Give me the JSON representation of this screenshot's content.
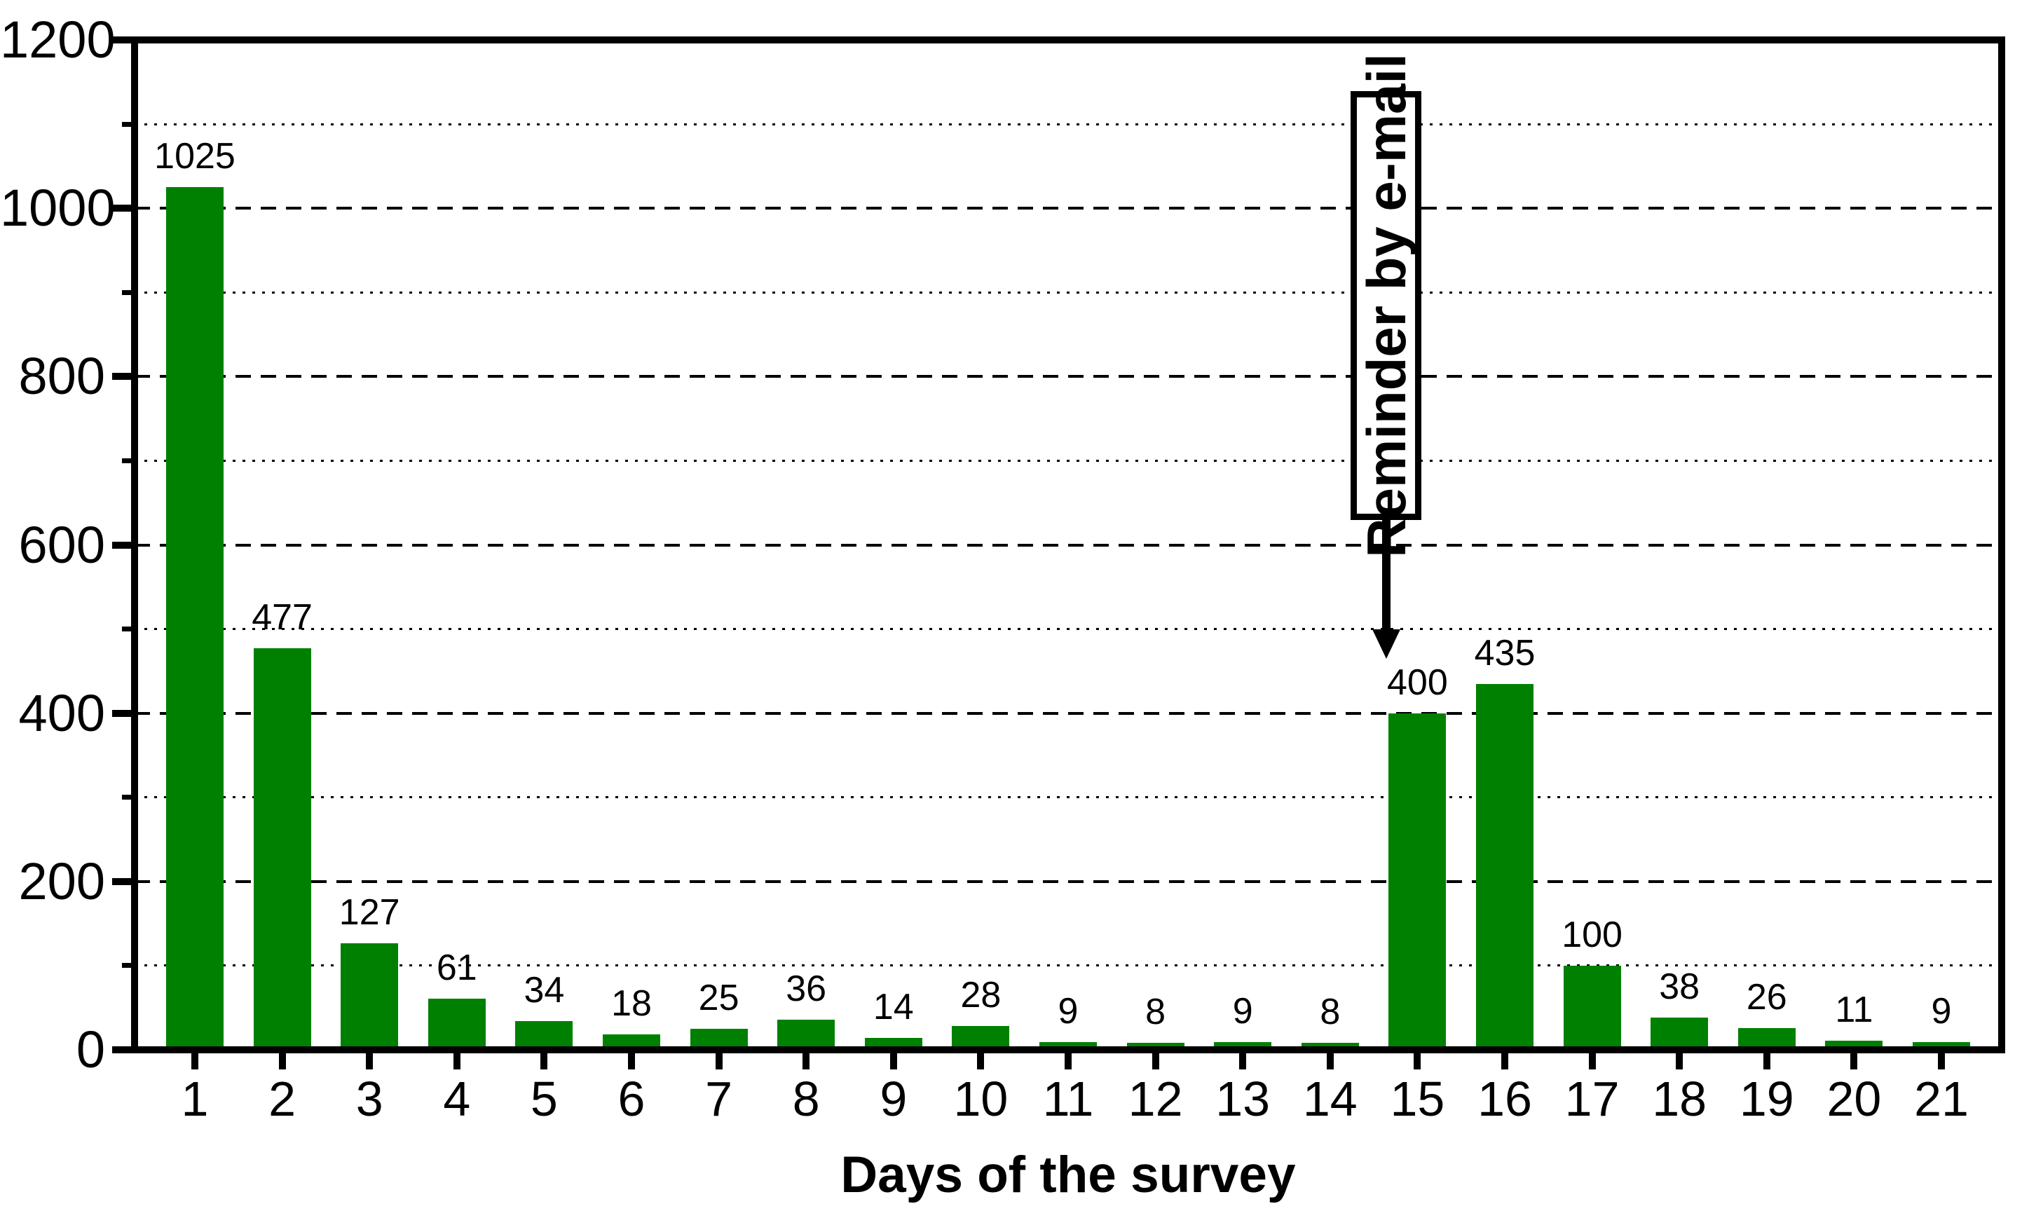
{
  "chart_data": {
    "type": "bar",
    "title": "",
    "xlabel": "Days of the survey",
    "ylabel": "",
    "categories": [
      1,
      2,
      3,
      4,
      5,
      6,
      7,
      8,
      9,
      10,
      11,
      12,
      13,
      14,
      15,
      16,
      17,
      18,
      19,
      20,
      21
    ],
    "values": [
      1025,
      477,
      127,
      61,
      34,
      18,
      25,
      36,
      14,
      28,
      9,
      8,
      9,
      8,
      400,
      435,
      100,
      38,
      26,
      11,
      9
    ],
    "bar_color": "#008000",
    "axis_color": "#000000",
    "background_color": "#ffffff",
    "ylim": [
      0,
      1200
    ],
    "yticks_major": [
      0,
      200,
      400,
      600,
      800,
      1000,
      1200
    ],
    "yticks_minor": [
      100,
      300,
      500,
      700,
      900,
      1100
    ],
    "grid": {
      "orientation": "horizontal",
      "major_style": "dashed",
      "minor_style": "dotted",
      "legend": "none"
    },
    "annotation": {
      "text": "Reminder by e-mail",
      "arrow_points_to_day": 15
    }
  }
}
